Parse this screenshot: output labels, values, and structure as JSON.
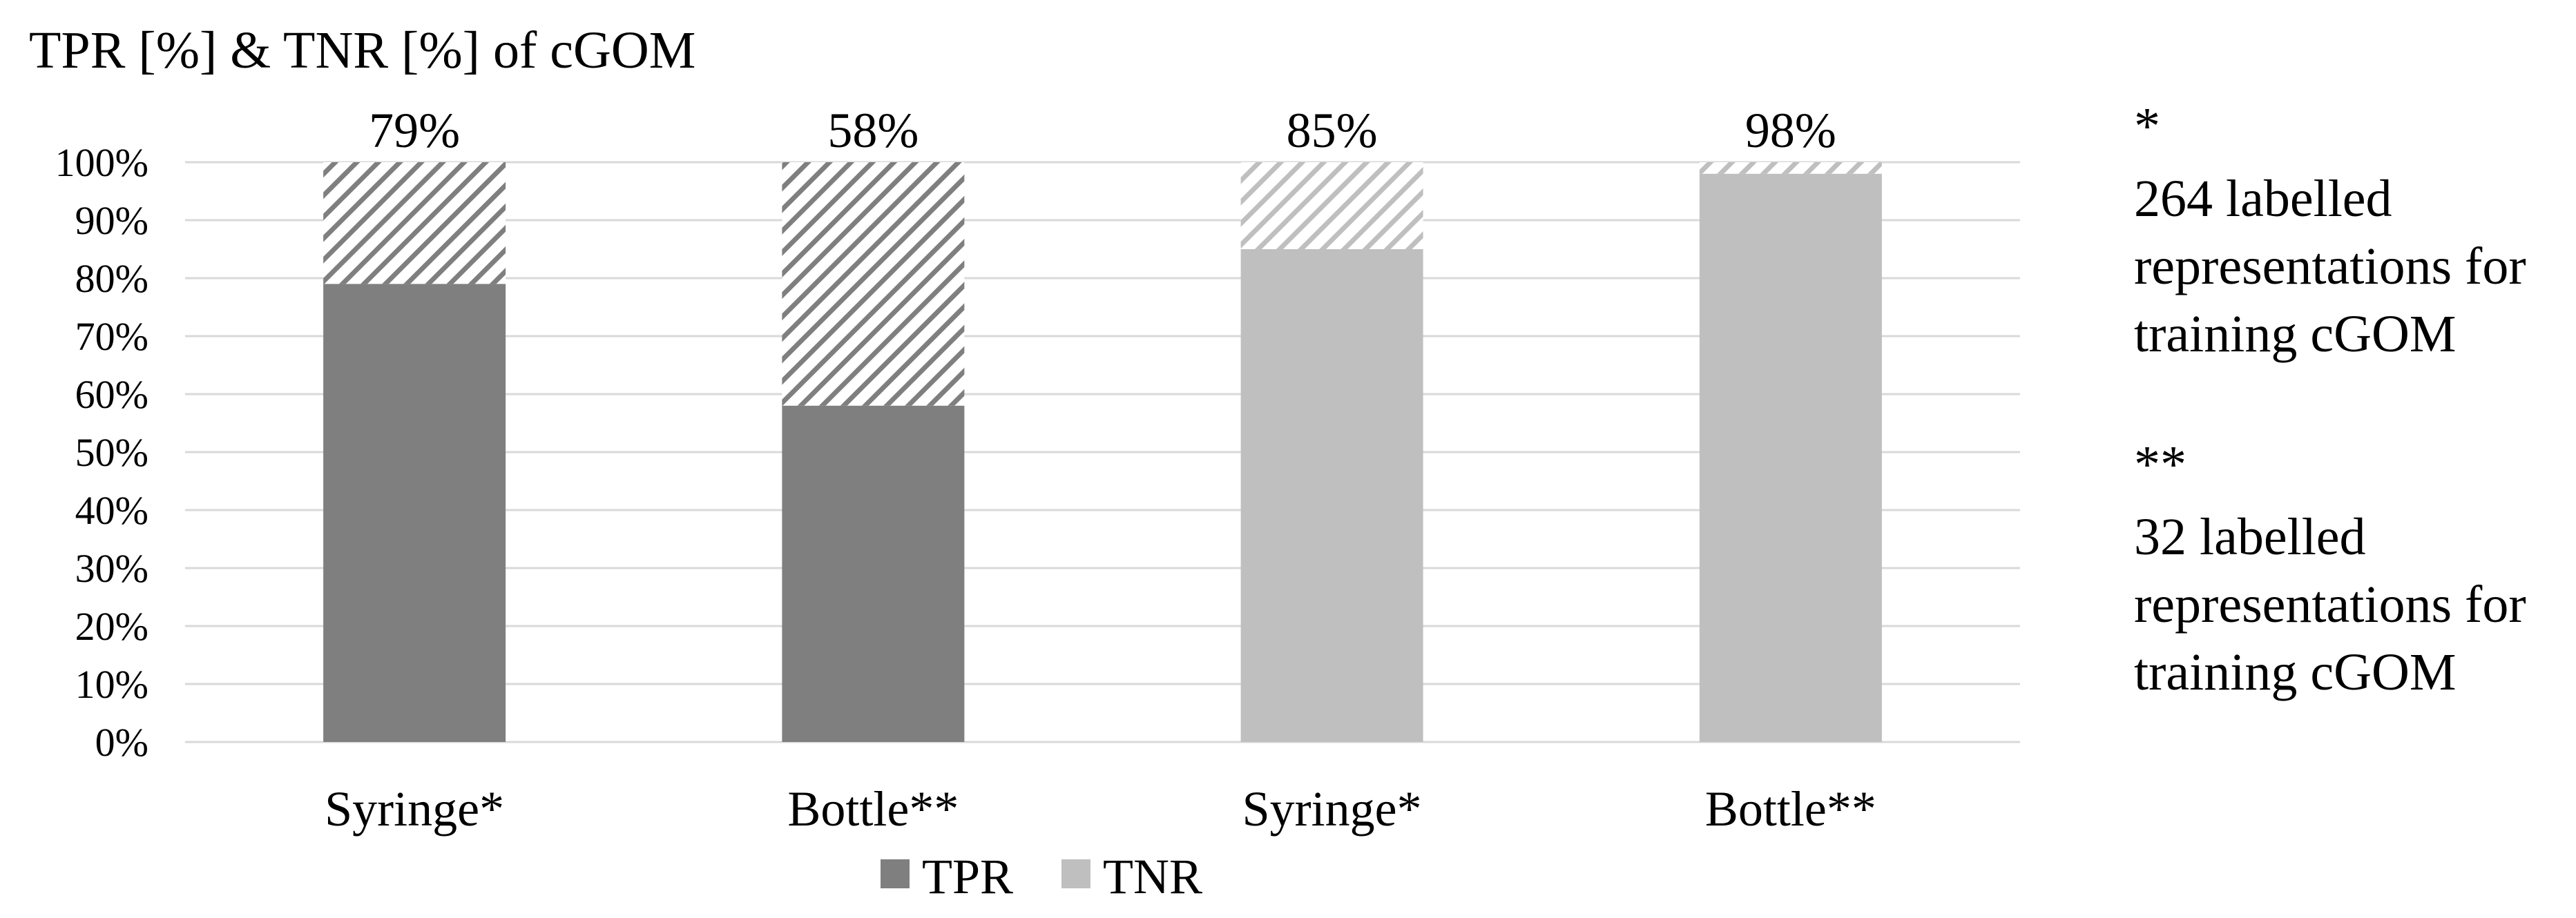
{
  "chart_data": {
    "type": "bar",
    "stacked": true,
    "title": "TPR [%] & TNR [%] of cGOM",
    "categories": [
      "Syringe*",
      "Bottle**",
      "Syringe*",
      "Bottle**"
    ],
    "values": [
      79,
      58,
      85,
      98
    ],
    "value_labels": [
      "79%",
      "58%",
      "85%",
      "98%"
    ],
    "metric": [
      "TPR",
      "TPR",
      "TNR",
      "TNR"
    ],
    "remainder_pattern": "diagonal-hatch",
    "series": [
      {
        "name": "TPR",
        "color": "#7f7f7f"
      },
      {
        "name": "TNR",
        "color": "#bfbfbf"
      }
    ],
    "ylim": [
      0,
      100
    ],
    "y_ticks": [
      0,
      10,
      20,
      30,
      40,
      50,
      60,
      70,
      80,
      90,
      100
    ],
    "y_tick_format": "%",
    "grid": true,
    "legend_position": "bottom-center",
    "notes": [
      {
        "marker": "*",
        "lines": [
          "264 labelled",
          "representations for",
          "training cGOM"
        ]
      },
      {
        "marker": "**",
        "lines": [
          "32 labelled",
          "representations for",
          "training cGOM"
        ]
      }
    ]
  },
  "colors": {
    "tpr": "#7f7f7f",
    "tnr": "#bfbfbf",
    "grid": "#d9d9d9",
    "background": "#ffffff"
  }
}
